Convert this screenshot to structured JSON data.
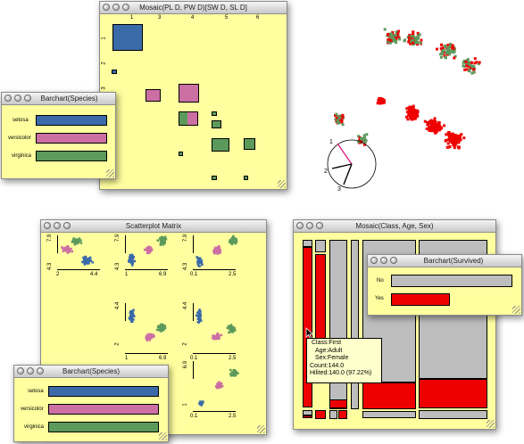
{
  "colors": {
    "setosa": "#3b6aa8",
    "versicolor": "#cc6fa3",
    "virginica": "#5c9a5c",
    "highlight": "#ee0000",
    "window_bg": "#ffffa0",
    "grey": "#bdbdbd"
  },
  "mosaic_pl": {
    "title": "Mosaic(PL D, PW D)[SW D, SL D]",
    "col_labels": [
      "1",
      "3",
      "4",
      "5",
      "6"
    ],
    "row_labels": [
      "1",
      "2",
      "3"
    ]
  },
  "barchart_top": {
    "title": "Barchart(Species)",
    "rows": [
      {
        "label": "setosa",
        "value": 50
      },
      {
        "label": "versicolor",
        "value": 50
      },
      {
        "label": "virginica",
        "value": 50
      }
    ]
  },
  "splom": {
    "title": "Scatterplot Matrix",
    "ticks": {
      "sl_min": "4.3",
      "sl_max": "7.9",
      "sw_min": "2",
      "sw_max": "4.4",
      "pl_min": "1",
      "pl_max": "6.9",
      "pw_min": "0.1",
      "pw_max": "2.5"
    }
  },
  "barchart_bottom": {
    "title": "Barchart(Species)",
    "rows": [
      {
        "label": "setosa",
        "value": 50
      },
      {
        "label": "versicolor",
        "value": 50
      },
      {
        "label": "virginica",
        "value": 50
      }
    ]
  },
  "mosaic_cas": {
    "title": "Mosaic(Class, Age, Sex)"
  },
  "barchart_survived": {
    "title": "Barchart(Survived)",
    "rows": [
      {
        "label": "No",
        "value": 1490
      },
      {
        "label": "Yes",
        "value": 711
      }
    ]
  },
  "tooltip": {
    "lines": [
      "Class:First",
      "Age:Adult",
      "Sex:Female",
      "Count:144.0",
      "Hilited:140.0 (97.22%)"
    ]
  },
  "rotating_plot": {
    "axis_labels": [
      "1",
      "2",
      "3"
    ]
  }
}
